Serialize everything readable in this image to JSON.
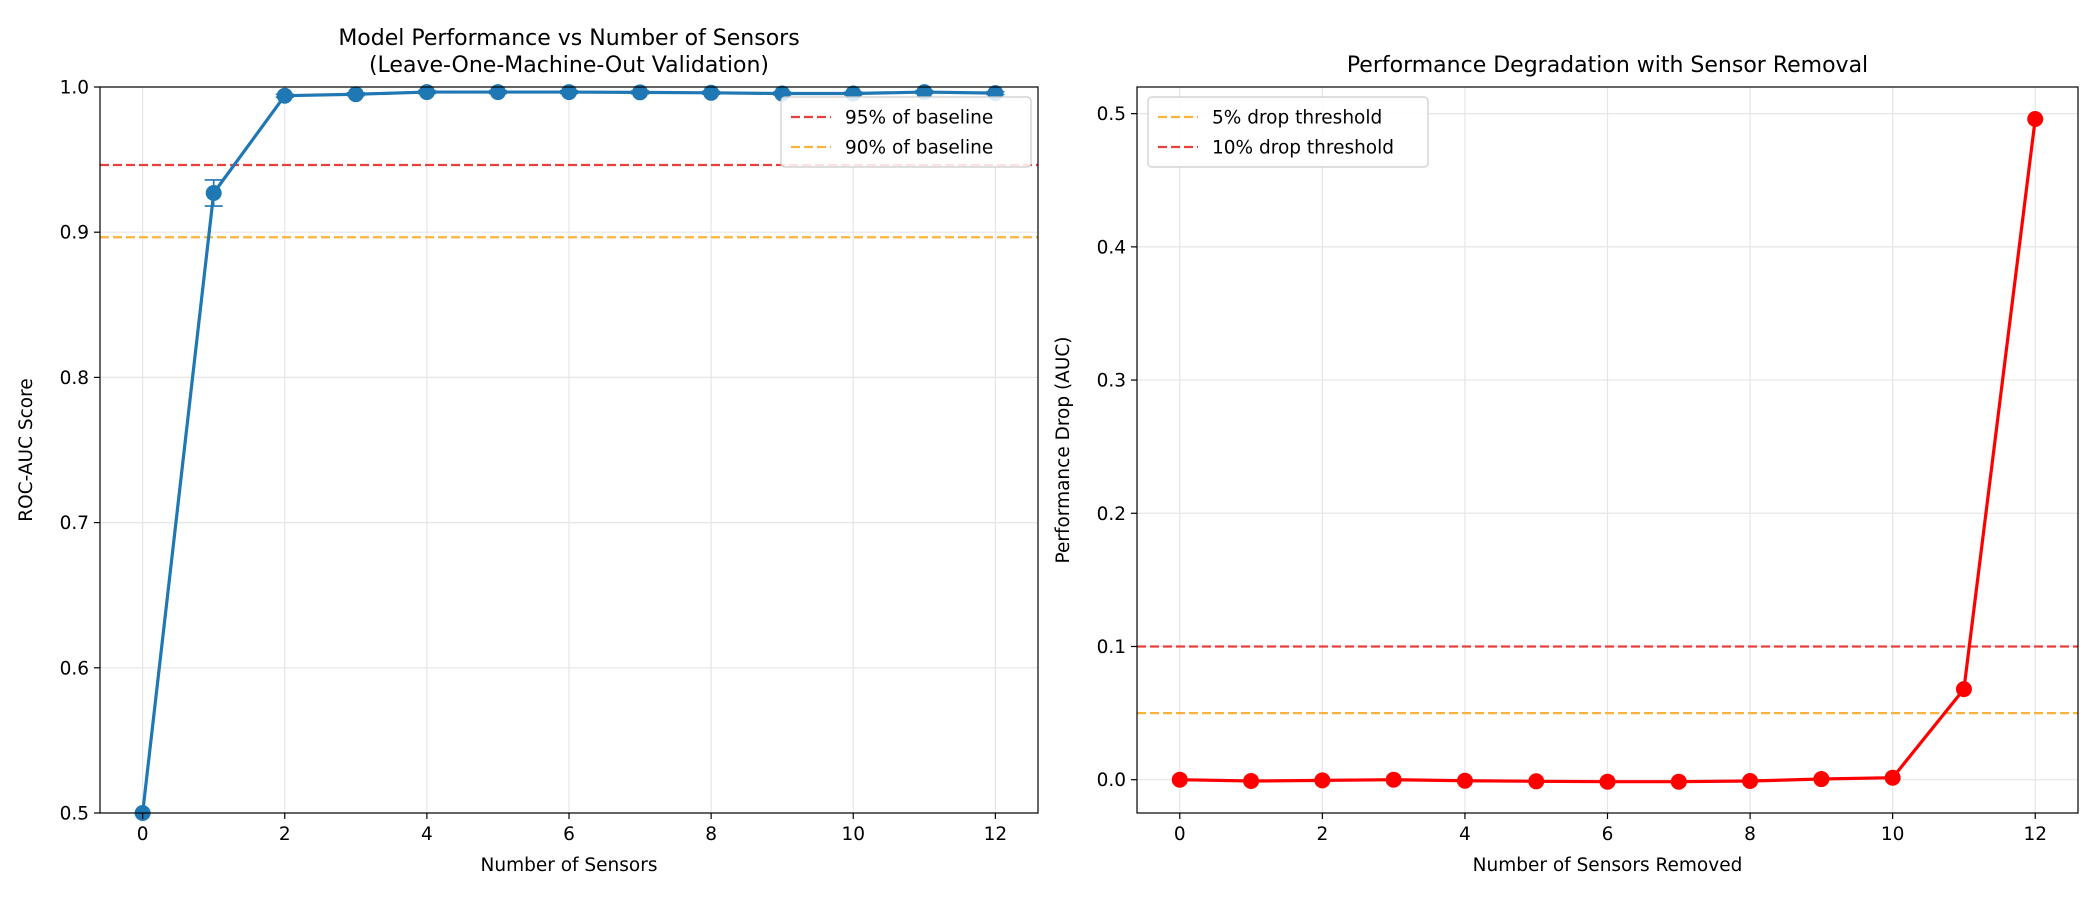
{
  "chart_data": [
    {
      "type": "line",
      "title": "Model Performance vs Number of Sensors",
      "subtitle": "(Leave-One-Machine-Out Validation)",
      "xlabel": "Number of Sensors",
      "ylabel": "ROC-AUC Score",
      "xlim": [
        -0.6,
        12.6
      ],
      "ylim": [
        0.5,
        1.0
      ],
      "xticks": [
        0,
        2,
        4,
        6,
        8,
        10,
        12
      ],
      "yticks": [
        0.5,
        0.6,
        0.7,
        0.8,
        0.9,
        1.0
      ],
      "grid": true,
      "legend_position": "top-right",
      "series": [
        {
          "color": "#1f77b4",
          "x": [
            0,
            1,
            2,
            3,
            4,
            5,
            6,
            7,
            8,
            9,
            10,
            11,
            12
          ],
          "y": [
            0.5,
            0.927,
            0.994,
            0.995,
            0.9965,
            0.9965,
            0.9965,
            0.9963,
            0.996,
            0.9955,
            0.9955,
            0.9965,
            0.9958
          ],
          "error": [
            0,
            0.009,
            0.001,
            0.001,
            0.001,
            0.001,
            0.001,
            0.001,
            0.001,
            0.001,
            0.001,
            0.001,
            0.001
          ]
        }
      ],
      "reference_lines": [
        {
          "name": "95% of baseline",
          "y": 0.9463,
          "color": "#e8403f"
        },
        {
          "name": "90% of baseline",
          "y": 0.8965,
          "color": "#fbb33e"
        }
      ]
    },
    {
      "type": "line",
      "title": "Performance Degradation with Sensor Removal",
      "xlabel": "Number of Sensors Removed",
      "ylabel": "Performance Drop (AUC)",
      "xlim": [
        -0.6,
        12.6
      ],
      "ylim": [
        -0.025,
        0.52
      ],
      "xticks": [
        0,
        2,
        4,
        6,
        8,
        10,
        12
      ],
      "yticks": [
        0.0,
        0.1,
        0.2,
        0.3,
        0.4,
        0.5
      ],
      "grid": true,
      "legend_position": "top-left",
      "series": [
        {
          "color": "#ff0000",
          "x": [
            0,
            1,
            2,
            3,
            4,
            5,
            6,
            7,
            8,
            9,
            10,
            11,
            12
          ],
          "y": [
            0.0,
            -0.001,
            -0.0005,
            0.0,
            -0.0008,
            -0.0012,
            -0.0015,
            -0.0015,
            -0.001,
            0.0005,
            0.0015,
            0.068,
            0.496
          ]
        }
      ],
      "reference_lines": [
        {
          "name": "5% drop threshold",
          "y": 0.05,
          "color": "#fbb33e"
        },
        {
          "name": "10% drop threshold",
          "y": 0.1,
          "color": "#e8403f"
        }
      ]
    }
  ]
}
